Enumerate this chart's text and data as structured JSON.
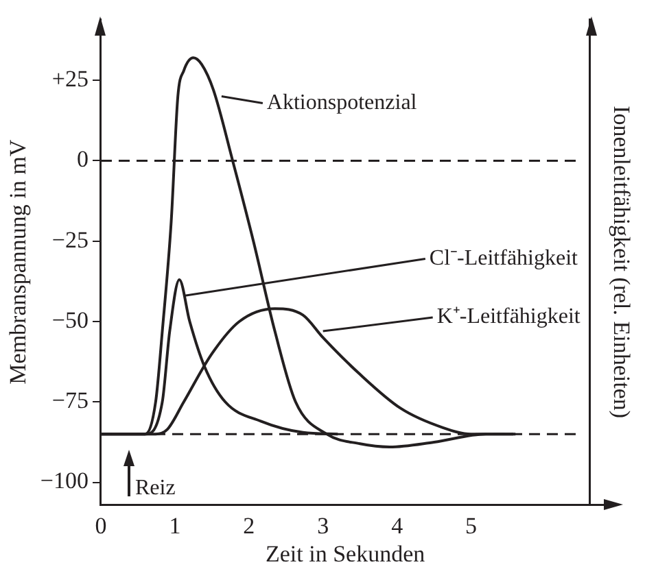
{
  "chart_data": {
    "type": "line",
    "xlabel": "Zeit in Sekunden",
    "ylabel": "Membranspannung in mV",
    "y2label": "Ionenleitfähigkeit (rel. Einheiten)",
    "xlim": [
      0,
      6.6
    ],
    "xticks": [
      0,
      1,
      2,
      3,
      4,
      5
    ],
    "ylim": [
      -107,
      44
    ],
    "yticks": [
      {
        "value": -100,
        "label": "−100"
      },
      {
        "value": -75,
        "label": "−75"
      },
      {
        "value": -50,
        "label": "−50"
      },
      {
        "value": -25,
        "label": "−25"
      },
      0,
      {
        "value": 25,
        "label": "+25"
      }
    ],
    "grid": false,
    "legend": false,
    "marker": "none",
    "line_style": "solid",
    "series": [
      {
        "color": "#231f20",
        "x": [
          0,
          0.6,
          0.74,
          0.83,
          0.95,
          1.04,
          1.12,
          1.25,
          1.36,
          1.52,
          1.78,
          2.06,
          2.35,
          2.63,
          3.05,
          3.5,
          3.9,
          4.5,
          5.2,
          5.57
        ],
        "values": [
          -85,
          -85,
          -75,
          -53,
          -19,
          20,
          28,
          32,
          30,
          22,
          0,
          -25,
          -53,
          -75,
          -85,
          -88,
          -89,
          -87.5,
          -85,
          -85
        ]
      },
      {
        "color": "#231f20",
        "x": [
          0,
          0.6,
          0.83,
          0.93,
          1.06,
          1.2,
          1.4,
          1.68,
          2.16,
          2.73,
          3.2
        ],
        "values": [
          -85,
          -85,
          -75,
          -53,
          -37,
          -50,
          -64,
          -75,
          -81,
          -84.5,
          -85
        ]
      },
      {
        "color": "#231f20",
        "x": [
          0,
          0.74,
          0.9,
          1.12,
          1.5,
          1.87,
          2.35,
          2.73,
          3.0,
          3.48,
          4.05,
          4.62,
          5.0,
          5.6
        ],
        "values": [
          -85,
          -85,
          -83.5,
          -75,
          -60,
          -50,
          -46,
          -48,
          -55,
          -66,
          -77,
          -83,
          -85,
          -85
        ]
      }
    ],
    "ref_lines": [
      {
        "axis": "y",
        "value": 0,
        "line_style": "dashed"
      },
      {
        "axis": "y",
        "value": -85,
        "line_style": "dashed"
      }
    ],
    "annotations": [
      {
        "text": "Aktionspotenzial",
        "x": 1.63,
        "y": 20
      },
      {
        "text": "Cl⁻-Leitfähigkeit",
        "x": 1.12,
        "y": -42
      },
      {
        "text": "K⁺-Leitfähigkeit",
        "x": 3.0,
        "y": -53
      },
      "Reiz"
    ]
  }
}
